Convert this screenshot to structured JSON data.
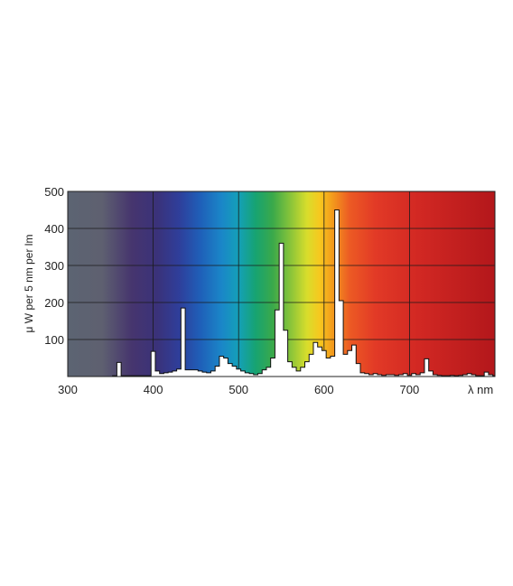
{
  "chart_data": {
    "type": "area",
    "title": "",
    "xlabel": "λ nm",
    "ylabel": "μ W per 5 nm per lm",
    "xlim": [
      300,
      800
    ],
    "ylim": [
      0,
      500
    ],
    "x_ticks": [
      "300",
      "400",
      "500",
      "600",
      "700"
    ],
    "y_ticks": [
      "100",
      "200",
      "300",
      "400",
      "500"
    ],
    "grid": true,
    "background": "visible color spectrum gradient from violet-grey to deep red",
    "fill_color": "#ffffff",
    "step_nm": 5,
    "series": [
      {
        "x": [
          355,
          360,
          365,
          370,
          375,
          380,
          385,
          390,
          395,
          400,
          405,
          410,
          415,
          420,
          425,
          430,
          435,
          440,
          445,
          450,
          455,
          460,
          465,
          470,
          475,
          480,
          485,
          490,
          495,
          500,
          505,
          510,
          515,
          520,
          525,
          530,
          535,
          540,
          545,
          550,
          555,
          560,
          565,
          570,
          575,
          580,
          585,
          590,
          595,
          600,
          605,
          610,
          615,
          620,
          625,
          630,
          635,
          640,
          645,
          650,
          655,
          660,
          665,
          670,
          675,
          680,
          685,
          690,
          695,
          700,
          705,
          710,
          715,
          720,
          725,
          730,
          735,
          740,
          745,
          750,
          755,
          760,
          765,
          770,
          775,
          780,
          785,
          790,
          795,
          800
        ],
        "values": [
          2,
          38,
          2,
          2,
          2,
          2,
          2,
          2,
          2,
          68,
          15,
          8,
          10,
          12,
          15,
          20,
          185,
          18,
          18,
          18,
          15,
          12,
          10,
          15,
          28,
          55,
          50,
          35,
          28,
          20,
          15,
          10,
          8,
          5,
          8,
          18,
          25,
          50,
          180,
          360,
          125,
          40,
          25,
          15,
          25,
          40,
          60,
          92,
          80,
          70,
          50,
          55,
          450,
          205,
          60,
          70,
          85,
          35,
          10,
          8,
          5,
          8,
          5,
          3,
          5,
          5,
          3,
          5,
          8,
          3,
          8,
          5,
          10,
          48,
          15,
          5,
          3,
          2,
          2,
          3,
          2,
          3,
          5,
          8,
          5,
          2,
          2,
          12,
          5,
          2
        ]
      }
    ]
  }
}
